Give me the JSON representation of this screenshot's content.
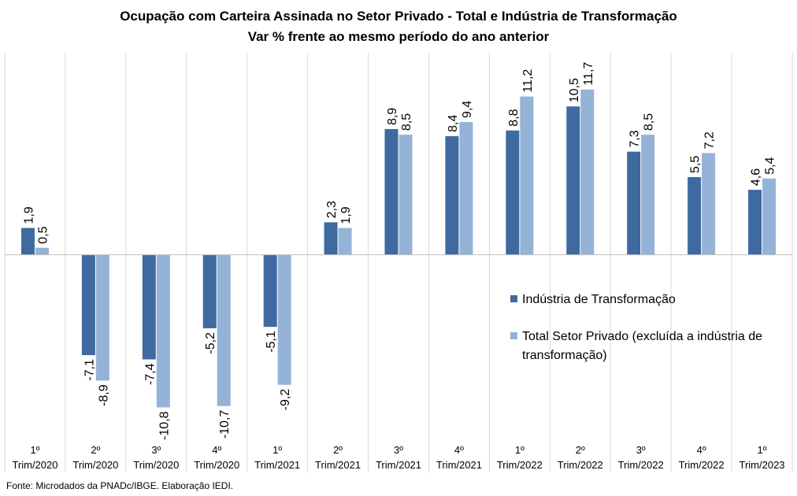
{
  "chart_data": {
    "type": "bar",
    "title": "Ocupação com Carteira Assinada no Setor Privado  - Total e Indústria de Transformação",
    "subtitle": "Var % frente ao mesmo período do ano anterior",
    "categories": [
      [
        "1º",
        "Trim/2020"
      ],
      [
        "2º",
        "Trim/2020"
      ],
      [
        "3º",
        "Trim/2020"
      ],
      [
        "4º",
        "Trim/2020"
      ],
      [
        "1º",
        "Trim/2021"
      ],
      [
        "2º",
        "Trim/2021"
      ],
      [
        "3º",
        "Trim/2021"
      ],
      [
        "4º",
        "Trim/2021"
      ],
      [
        "1º",
        "Trim/2022"
      ],
      [
        "2º",
        "Trim/2022"
      ],
      [
        "3º",
        "Trim/2022"
      ],
      [
        "4º",
        "Trim/2022"
      ],
      [
        "1º",
        "Trim/2023"
      ]
    ],
    "series": [
      {
        "name": "Indústria de Transformação",
        "color": "#3F6AA0",
        "values": [
          1.9,
          -7.1,
          -7.4,
          -5.2,
          -5.1,
          2.3,
          8.9,
          8.4,
          8.8,
          10.5,
          7.3,
          5.5,
          4.6
        ],
        "labels": [
          "1,9",
          "-7,1",
          "-7,4",
          "-5,2",
          "-5,1",
          "2,3",
          "8,9",
          "8,4",
          "8,8",
          "10,5",
          "7,3",
          "5,5",
          "4,6"
        ]
      },
      {
        "name": "Total Setor Privado (excluída a indústria de transformação)",
        "legend_lines": [
          "Total Setor Privado (excluída a indústria de",
          "transformação)"
        ],
        "color": "#95B3D7",
        "values": [
          0.5,
          -8.9,
          -10.8,
          -10.7,
          -9.2,
          1.9,
          8.5,
          9.4,
          11.2,
          11.7,
          8.5,
          7.2,
          5.4
        ],
        "labels": [
          "0,5",
          "-8,9",
          "-10,8",
          "-10,7",
          "-9,2",
          "1,9",
          "8,5",
          "9,4",
          "11,2",
          "11,7",
          "8,5",
          "7,2",
          "5,4"
        ]
      }
    ],
    "ylim": [
      -12.5,
      14.3
    ],
    "grid": "vertical category separators",
    "legend_position": "lower-right inside plot"
  },
  "source": "Fonte: Microdados da PNADc/IBGE. Elaboração IEDI."
}
